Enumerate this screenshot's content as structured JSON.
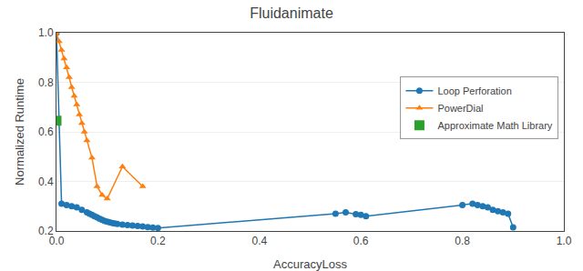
{
  "chart_data": {
    "type": "line",
    "title": "Fluidanimate",
    "xlabel": "AccuracyLoss",
    "ylabel": "Normalized Runtime",
    "xlim": [
      0,
      1.0
    ],
    "ylim": [
      0.2,
      1.0
    ],
    "xticks": [
      {
        "value": 0,
        "label": "0.0"
      },
      0.2,
      0.4,
      0.6,
      0.8,
      {
        "value": 1.0,
        "label": "1.0"
      }
    ],
    "yticks": [
      0.2,
      0.4,
      0.6,
      0.8,
      {
        "value": 1.0,
        "label": "1.0"
      }
    ],
    "grid": "y",
    "legend": "right",
    "series": [
      {
        "name": "Loop Perforation",
        "type": "line",
        "marker": "circle",
        "x": [
          0.0,
          0.01,
          0.02,
          0.03,
          0.04,
          0.05,
          0.06,
          0.065,
          0.07,
          0.075,
          0.08,
          0.085,
          0.09,
          0.095,
          0.1,
          0.105,
          0.11,
          0.115,
          0.12,
          0.13,
          0.14,
          0.15,
          0.16,
          0.17,
          0.18,
          0.19,
          0.2,
          0.55,
          0.57,
          0.59,
          0.6,
          0.61,
          0.8,
          0.82,
          0.83,
          0.84,
          0.85,
          0.86,
          0.87,
          0.88,
          0.89,
          0.9
        ],
        "values": [
          1.0,
          0.31,
          0.305,
          0.3,
          0.295,
          0.285,
          0.275,
          0.27,
          0.265,
          0.26,
          0.255,
          0.25,
          0.245,
          0.24,
          0.238,
          0.235,
          0.232,
          0.23,
          0.228,
          0.226,
          0.224,
          0.222,
          0.22,
          0.218,
          0.216,
          0.214,
          0.212,
          0.27,
          0.275,
          0.268,
          0.265,
          0.26,
          0.305,
          0.31,
          0.305,
          0.3,
          0.295,
          0.285,
          0.28,
          0.275,
          0.27,
          0.215
        ]
      },
      {
        "name": "PowerDial",
        "type": "line",
        "marker": "triangle-up",
        "x": [
          0.0,
          0.005,
          0.01,
          0.015,
          0.02,
          0.025,
          0.03,
          0.035,
          0.04,
          0.045,
          0.05,
          0.055,
          0.06,
          0.07,
          0.08,
          0.09,
          0.1,
          0.13,
          0.17
        ],
        "values": [
          1.0,
          0.965,
          0.93,
          0.895,
          0.86,
          0.82,
          0.78,
          0.745,
          0.71,
          0.67,
          0.635,
          0.6,
          0.565,
          0.495,
          0.38,
          0.345,
          0.33,
          0.46,
          0.38
        ]
      },
      {
        "name": "Approximate Math Library",
        "type": "scatter",
        "marker": "square",
        "x": [
          0.0
        ],
        "values": [
          0.645
        ]
      }
    ]
  }
}
